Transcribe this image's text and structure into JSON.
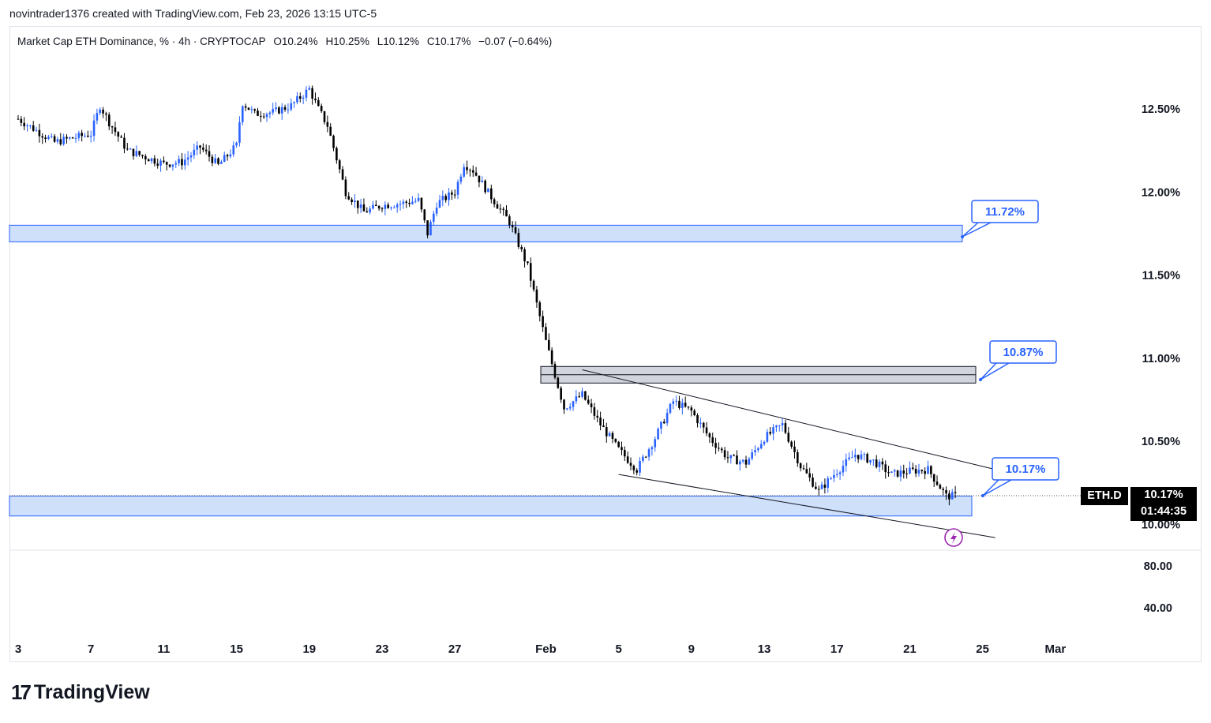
{
  "caption": "novintrader1376 created with TradingView.com, Feb 23, 2026 13:15 UTC-5",
  "legend": {
    "title": "Market Cap ETH Dominance, % · 4h · CRYPTOCAP",
    "open": "O10.24%",
    "high": "H10.25%",
    "low": "L10.12%",
    "close": "C10.17%",
    "change": "−0.07 (−0.64%)"
  },
  "price_tag": {
    "symbol": "ETH.D",
    "price": "10.17%",
    "countdown": "01:44:35"
  },
  "brand": {
    "mark": "17",
    "name": "TradingView"
  },
  "colors": {
    "up": "#2962ff",
    "down": "#000000",
    "zone": "#cfe0fb",
    "zone_border": "#2962ff",
    "gray_zone": "#d1d4dc"
  },
  "chart_data": {
    "type": "candlestick",
    "title": "Market Cap ETH Dominance",
    "units": "%",
    "timeframe": "4h",
    "y_ticks": [
      "12.50%",
      "12.00%",
      "11.50%",
      "11.00%",
      "10.50%",
      "10.00%"
    ],
    "ylim": [
      9.85,
      12.95
    ],
    "x_ticks": [
      "3",
      "7",
      "11",
      "15",
      "19",
      "23",
      "27",
      "Feb",
      "5",
      "9",
      "13",
      "17",
      "21",
      "25",
      "Mar"
    ],
    "path_points": [
      [
        "Jan 3",
        12.44
      ],
      [
        "Jan 5",
        12.3
      ],
      [
        "Jan 7",
        12.35
      ],
      [
        "Jan 7.5",
        12.52
      ],
      [
        "Jan 8",
        12.42
      ],
      [
        "Jan 9",
        12.25
      ],
      [
        "Jan 11",
        12.17
      ],
      [
        "Jan 12",
        12.18
      ],
      [
        "Jan 13",
        12.27
      ],
      [
        "Jan 14",
        12.16
      ],
      [
        "Jan 15",
        12.28
      ],
      [
        "Jan 15.3",
        12.54
      ],
      [
        "Jan 16",
        12.47
      ],
      [
        "Jan 17",
        12.48
      ],
      [
        "Jan 18",
        12.52
      ],
      [
        "Jan 19",
        12.62
      ],
      [
        "Jan 19.5",
        12.5
      ],
      [
        "Jan 20",
        12.4
      ],
      [
        "Jan 21",
        12.0
      ],
      [
        "Jan 22",
        11.88
      ],
      [
        "Jan 23",
        11.92
      ],
      [
        "Jan 24",
        11.93
      ],
      [
        "Jan 25",
        11.95
      ],
      [
        "Jan 25.5",
        11.75
      ],
      [
        "Jan 26",
        11.93
      ],
      [
        "Jan 27",
        12.0
      ],
      [
        "Jan 27.5",
        12.17
      ],
      [
        "Jan 28",
        12.13
      ],
      [
        "Jan 29",
        11.97
      ],
      [
        "Jan 30",
        11.82
      ],
      [
        "Jan 31",
        11.55
      ],
      [
        "Feb 1",
        11.1
      ],
      [
        "Feb 2",
        10.7
      ],
      [
        "Feb 3",
        10.78
      ],
      [
        "Feb 4",
        10.6
      ],
      [
        "Feb 5",
        10.45
      ],
      [
        "Feb 6",
        10.33
      ],
      [
        "Feb 7",
        10.52
      ],
      [
        "Feb 8",
        10.74
      ],
      [
        "Feb 9",
        10.68
      ],
      [
        "Feb 10",
        10.52
      ],
      [
        "Feb 11",
        10.4
      ],
      [
        "Feb 12",
        10.37
      ],
      [
        "Feb 13",
        10.52
      ],
      [
        "Feb 14",
        10.6
      ],
      [
        "Feb 15",
        10.35
      ],
      [
        "Feb 16",
        10.2
      ],
      [
        "Feb 17",
        10.32
      ],
      [
        "Feb 18",
        10.42
      ],
      [
        "Feb 19",
        10.38
      ],
      [
        "Feb 20",
        10.3
      ],
      [
        "Feb 21",
        10.32
      ],
      [
        "Feb 22",
        10.33
      ],
      [
        "Feb 23",
        10.17
      ]
    ],
    "zones": [
      {
        "kind": "support",
        "low": 11.7,
        "high": 11.8
      },
      {
        "kind": "resistance",
        "low": 10.85,
        "high": 10.95
      },
      {
        "kind": "support",
        "low": 10.05,
        "high": 10.17
      }
    ],
    "callouts": [
      "11.72%",
      "10.87%",
      "10.17%"
    ],
    "channel": {
      "upper": [
        [
          "Feb 3",
          10.93
        ],
        [
          "Feb 25",
          10.33
        ]
      ],
      "lower": [
        [
          "Feb 5",
          10.3
        ],
        [
          "Feb 25",
          9.92
        ]
      ]
    },
    "last_price": 10.17,
    "lower_pane_ticks": [
      "80.00",
      "40.00"
    ],
    "grid": false
  }
}
